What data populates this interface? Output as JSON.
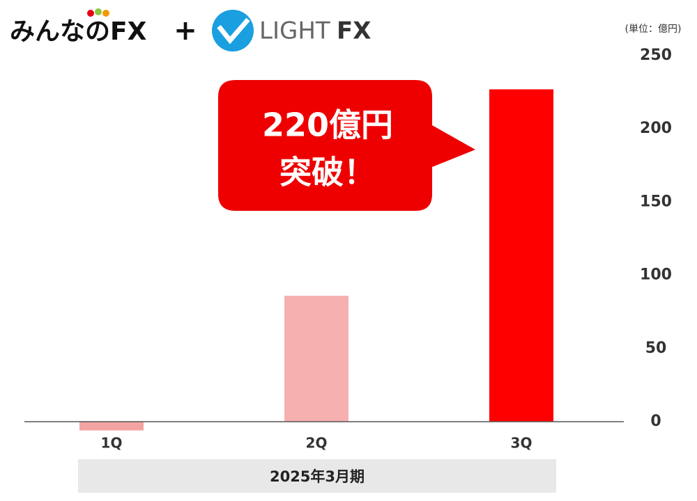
{
  "header": {
    "brand_1": "みんなのFX",
    "plus": "+",
    "brand_2": "LIGHT",
    "brand_2_suffix": "FX"
  },
  "chart_data": {
    "type": "bar",
    "unit_label": "(単位：億円)",
    "annotation_lines": [
      "220億円",
      "突破！"
    ],
    "x_group_label": "2025年3月期",
    "categories": [
      "1Q",
      "2Q",
      "3Q"
    ],
    "values": [
      -6,
      86,
      227
    ],
    "colors": [
      "#f4a3a3",
      "#f6b0b0",
      "#ff0000"
    ],
    "ylim": [
      0,
      250
    ],
    "yticks": [
      0,
      50,
      100,
      150,
      200,
      250
    ],
    "grid": false
  }
}
